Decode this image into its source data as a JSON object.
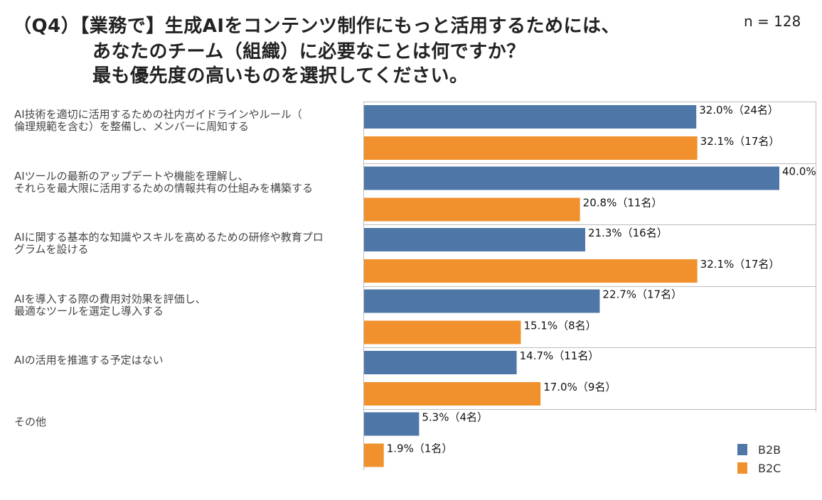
{
  "title": {
    "line1": "（Q4）【業務で】生成AIをコンテンツ制作にもっと活用するためには、",
    "line2": "あなたのチーム（組織）に必要なことは何ですか？",
    "line3": "最も優先度の高いものを選択してください。"
  },
  "sample_size": "n = 128",
  "colors": {
    "B2B": "#4E76A6",
    "B2C": "#F0912E"
  },
  "chart_data": {
    "type": "bar",
    "orientation": "horizontal",
    "categories": [
      [
        "AI技術を適切に活用するための社内ガイドラインやルール（",
        "倫理規範を含む）を整備し、メンバーに周知する"
      ],
      [
        "AIツールの最新のアップデートや機能を理解し、",
        "それらを最大限に活用するための情報共有の仕組みを構築する"
      ],
      [
        "AIに関する基本的な知識やスキルを高めるための研修や教育プロ",
        "グラムを設ける"
      ],
      [
        "AIを導入する際の費用対効果を評価し、",
        "最適なツールを選定し導入する"
      ],
      [
        "AIの活用を推進する予定はない"
      ],
      [
        "その他"
      ]
    ],
    "series": [
      {
        "name": "B2B",
        "values": [
          32.0,
          40.0,
          21.3,
          22.7,
          14.7,
          5.3
        ],
        "labels": [
          "32.0%（24名）",
          "40.0%",
          "21.3%（16名）",
          "22.7%（17名）",
          "14.7%（11名）",
          "5.3%（4名）"
        ]
      },
      {
        "name": "B2C",
        "values": [
          32.1,
          20.8,
          32.1,
          15.1,
          17.0,
          1.9
        ],
        "labels": [
          "32.1%（17名）",
          "20.8%（11名）",
          "32.1%（17名）",
          "15.1%（8名）",
          "17.0%（9名）",
          "1.9%（1名）"
        ]
      }
    ],
    "xlim": [
      0,
      40
    ],
    "legend": [
      "B2B",
      "B2C"
    ],
    "legend_position": "bottom-right"
  }
}
